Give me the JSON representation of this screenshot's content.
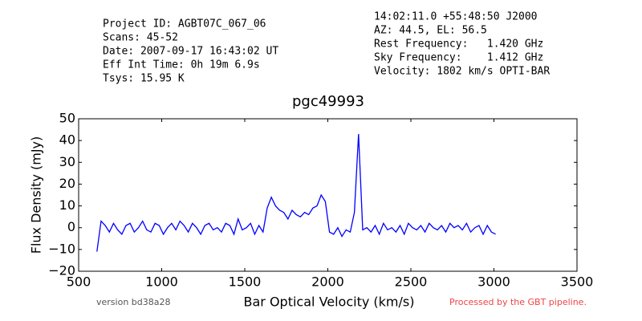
{
  "chart_data": {
    "type": "line",
    "title": "pgc49993",
    "xlabel": "Bar Optical Velocity (km/s)",
    "ylabel": "Flux Density (mJy)",
    "header_left": [
      "Project ID: AGBT07C_067_06",
      "Scans: 45-52",
      "Date: 2007-09-17 16:43:02 UT",
      "Eff Int Time: 0h 19m 6.9s",
      "Tsys: 15.95 K"
    ],
    "header_right": [
      "14:02:11.0 +55:48:50 J2000",
      "AZ: 44.5, EL: 56.5",
      "Rest Frequency:   1.420 GHz",
      "Sky Frequency:    1.412 GHz",
      "Velocity: 1802 km/s OPTI-BAR"
    ],
    "footer_left": "version bd38a28",
    "footer_right": "Processed by the GBT pipeline.",
    "xlim": [
      500,
      3500
    ],
    "ylim": [
      -20,
      50
    ],
    "xticks": [
      500,
      1000,
      1500,
      2000,
      2500,
      3000,
      3500
    ],
    "yticks": [
      {
        "value": -20,
        "label": "−20"
      },
      {
        "value": -10,
        "label": "−10"
      },
      0,
      10,
      20,
      30,
      40,
      50
    ],
    "grid": false,
    "x": [
      610,
      635,
      660,
      685,
      710,
      735,
      760,
      785,
      810,
      835,
      860,
      885,
      910,
      935,
      960,
      985,
      1010,
      1035,
      1060,
      1085,
      1110,
      1135,
      1160,
      1185,
      1210,
      1235,
      1260,
      1285,
      1310,
      1335,
      1360,
      1385,
      1410,
      1435,
      1460,
      1485,
      1510,
      1535,
      1560,
      1585,
      1610,
      1635,
      1660,
      1685,
      1710,
      1735,
      1760,
      1785,
      1810,
      1835,
      1860,
      1885,
      1910,
      1935,
      1960,
      1985,
      2010,
      2035,
      2060,
      2085,
      2110,
      2135,
      2160,
      2185,
      2210,
      2235,
      2260,
      2285,
      2310,
      2335,
      2360,
      2385,
      2410,
      2435,
      2460,
      2485,
      2510,
      2535,
      2560,
      2585,
      2610,
      2635,
      2660,
      2685,
      2710,
      2735,
      2760,
      2785,
      2810,
      2835,
      2860,
      2885,
      2910,
      2935,
      2960,
      2985,
      3010
    ],
    "series": [
      {
        "color": "#0000ff",
        "values": [
          -11,
          3,
          1,
          -2,
          2,
          -1,
          -3,
          1,
          2,
          -2,
          0,
          3,
          -1,
          -2,
          2,
          1,
          -3,
          0,
          2,
          -1,
          3,
          1,
          -2,
          2,
          0,
          -3,
          1,
          2,
          -1,
          0,
          -2,
          2,
          1,
          -3,
          4,
          -1,
          0,
          2,
          -3,
          1,
          -2,
          9,
          14,
          10,
          8,
          7,
          4,
          8,
          6,
          5,
          7,
          6,
          9,
          10,
          15,
          12,
          -2,
          -3,
          0,
          -4,
          -1,
          -2,
          7,
          43,
          -1,
          0,
          -2,
          1,
          -3,
          2,
          -1,
          0,
          -2,
          1,
          -3,
          2,
          0,
          -1,
          1,
          -2,
          2,
          0,
          -1,
          1,
          -2,
          2,
          0,
          1,
          -1,
          2,
          -2,
          0,
          1,
          -3,
          1,
          -2,
          -3
        ]
      }
    ]
  }
}
